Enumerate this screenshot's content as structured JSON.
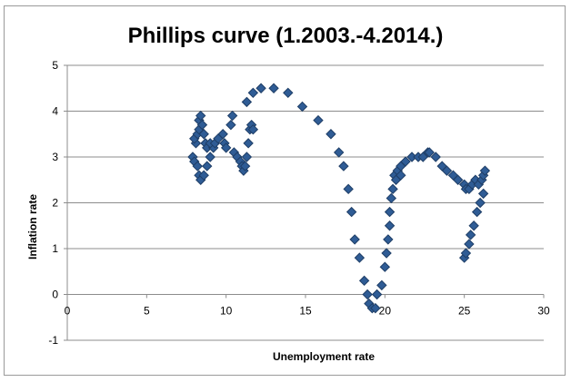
{
  "chart_data": {
    "type": "scatter",
    "title": "Phillips curve (1.2003.-4.2014.)",
    "xlabel": "Unemployment rate",
    "ylabel": "Inflation rate",
    "xlim": [
      0,
      30
    ],
    "ylim": [
      -1,
      5
    ],
    "x_ticks": [
      0,
      5,
      10,
      15,
      20,
      25,
      30
    ],
    "y_ticks": [
      -1,
      0,
      1,
      2,
      3,
      4,
      5
    ],
    "grid": "horizontal major gridlines",
    "legend": "none",
    "marker": "diamond",
    "colors": {
      "marker_fill": "#2F5C95",
      "marker_edge": "#1F3E66",
      "gridline": "#8C8C8C",
      "axis": "#8C8C8C"
    },
    "series": [
      {
        "points": [
          [
            7.9,
            3.0
          ],
          [
            8.0,
            2.9
          ],
          [
            8.1,
            3.3
          ],
          [
            8.0,
            3.4
          ],
          [
            8.2,
            3.5
          ],
          [
            8.3,
            3.6
          ],
          [
            8.3,
            3.8
          ],
          [
            8.4,
            3.9
          ],
          [
            8.5,
            3.7
          ],
          [
            8.6,
            3.5
          ],
          [
            8.7,
            3.3
          ],
          [
            8.8,
            3.2
          ],
          [
            8.2,
            2.8
          ],
          [
            8.3,
            2.6
          ],
          [
            8.4,
            2.5
          ],
          [
            8.6,
            2.6
          ],
          [
            8.8,
            2.8
          ],
          [
            9.0,
            3.0
          ],
          [
            9.2,
            3.2
          ],
          [
            9.0,
            3.3
          ],
          [
            9.3,
            3.3
          ],
          [
            9.5,
            3.4
          ],
          [
            9.8,
            3.5
          ],
          [
            9.9,
            3.3
          ],
          [
            10.0,
            3.2
          ],
          [
            10.3,
            3.7
          ],
          [
            10.4,
            3.9
          ],
          [
            10.5,
            3.1
          ],
          [
            10.7,
            3.0
          ],
          [
            10.9,
            2.9
          ],
          [
            11.0,
            2.8
          ],
          [
            11.1,
            2.7
          ],
          [
            11.2,
            2.8
          ],
          [
            11.3,
            3.0
          ],
          [
            11.4,
            3.3
          ],
          [
            11.5,
            3.6
          ],
          [
            11.6,
            3.7
          ],
          [
            11.7,
            3.6
          ],
          [
            11.3,
            4.2
          ],
          [
            11.7,
            4.4
          ],
          [
            12.2,
            4.5
          ],
          [
            13.0,
            4.5
          ],
          [
            13.9,
            4.4
          ],
          [
            14.8,
            4.1
          ],
          [
            15.8,
            3.8
          ],
          [
            16.6,
            3.5
          ],
          [
            17.1,
            3.1
          ],
          [
            17.4,
            2.8
          ],
          [
            17.7,
            2.3
          ],
          [
            17.9,
            1.8
          ],
          [
            18.1,
            1.2
          ],
          [
            18.4,
            0.8
          ],
          [
            18.7,
            0.3
          ],
          [
            18.9,
            0.0
          ],
          [
            19.0,
            -0.2
          ],
          [
            19.2,
            -0.3
          ],
          [
            19.4,
            -0.3
          ],
          [
            19.5,
            0.0
          ],
          [
            19.8,
            0.2
          ],
          [
            20.0,
            0.6
          ],
          [
            20.1,
            0.9
          ],
          [
            20.2,
            1.2
          ],
          [
            20.3,
            1.5
          ],
          [
            20.3,
            1.8
          ],
          [
            20.4,
            2.1
          ],
          [
            20.5,
            2.3
          ],
          [
            20.6,
            2.6
          ],
          [
            20.8,
            2.7
          ],
          [
            21.0,
            2.8
          ],
          [
            21.3,
            2.9
          ],
          [
            21.7,
            3.0
          ],
          [
            22.1,
            3.0
          ],
          [
            22.4,
            3.0
          ],
          [
            22.7,
            3.1
          ],
          [
            22.8,
            3.1
          ],
          [
            23.2,
            3.0
          ],
          [
            23.6,
            2.8
          ],
          [
            23.9,
            2.7
          ],
          [
            24.3,
            2.6
          ],
          [
            24.6,
            2.5
          ],
          [
            25.0,
            2.4
          ],
          [
            25.1,
            2.3
          ],
          [
            25.3,
            2.3
          ],
          [
            25.5,
            2.4
          ],
          [
            25.7,
            2.5
          ],
          [
            25.9,
            2.4
          ],
          [
            26.1,
            2.5
          ],
          [
            26.2,
            2.6
          ],
          [
            26.3,
            2.7
          ],
          [
            25.0,
            0.8
          ],
          [
            25.1,
            0.9
          ],
          [
            25.3,
            1.1
          ],
          [
            25.4,
            1.3
          ],
          [
            25.6,
            1.5
          ],
          [
            25.8,
            1.8
          ],
          [
            26.0,
            2.0
          ],
          [
            26.2,
            2.2
          ],
          [
            20.7,
            2.5
          ],
          [
            21.0,
            2.6
          ]
        ]
      }
    ]
  }
}
